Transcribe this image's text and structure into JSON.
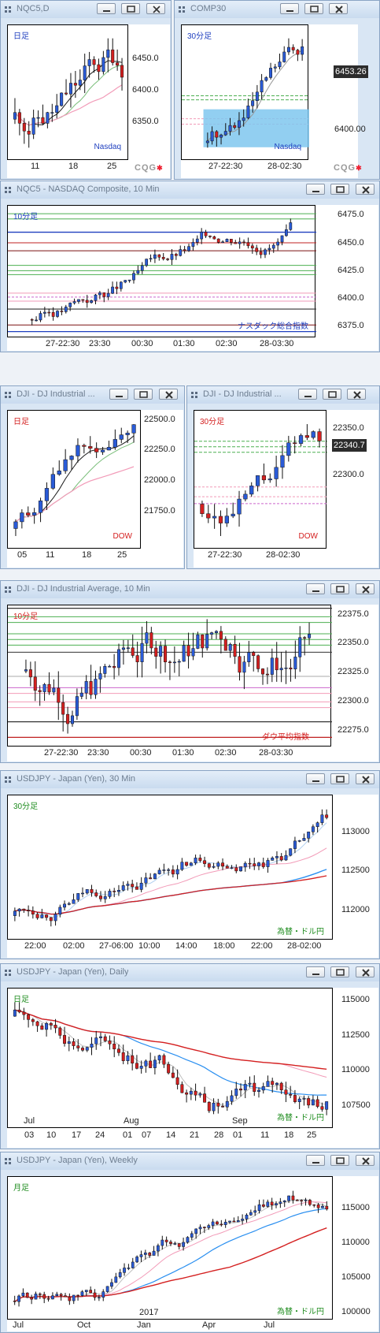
{
  "windows": [
    {
      "id": "w1",
      "title": "NQC5,D",
      "interval": "日足",
      "source": "Nasdaq",
      "source_color": "#1f3fbf",
      "y_ticks": [
        "6450.0",
        "6400.0",
        "6350.0"
      ],
      "x_ticks": [
        "11",
        "18",
        "25"
      ],
      "price": "",
      "watermark": "CQG"
    },
    {
      "id": "w2",
      "title": "COMP30",
      "interval": "30分足",
      "source": "Nasdaq",
      "source_color": "#1f3fbf",
      "y_ticks": [
        "6453.26",
        "6400.00"
      ],
      "x_ticks": [
        "27-22:30",
        "28-02:30"
      ],
      "price": "6453.26",
      "watermark": "CQG"
    },
    {
      "id": "w3",
      "title": "NQC5 - NASDAQ Composite, 10 Min",
      "interval": "10分足",
      "source": "ナスダック総合指数",
      "source_color": "#1f3fbf",
      "y_ticks": [
        "6475.0",
        "6450.0",
        "6425.0",
        "6400.0",
        "6375.0"
      ],
      "x_ticks": [
        "27-22:30",
        "23:30",
        "00:30",
        "01:30",
        "02:30",
        "28-03:30"
      ],
      "price": "",
      "watermark": ""
    },
    {
      "id": "w4",
      "title": "DJI - DJ Industrial ...",
      "interval": "日足",
      "source": "DOW",
      "source_color": "#d42020",
      "y_ticks": [
        "22500.0",
        "22250.0",
        "22000.0",
        "21750.0"
      ],
      "x_ticks": [
        "05",
        "11",
        "18",
        "25"
      ],
      "price": "",
      "watermark": ""
    },
    {
      "id": "w5",
      "title": "DJI - DJ Industrial ...",
      "interval": "30分足",
      "source": "DOW",
      "source_color": "#d42020",
      "y_ticks": [
        "22350.0",
        "22340.7",
        "22300.0"
      ],
      "x_ticks": [
        "27-22:30",
        "28-02:30"
      ],
      "price": "22340.7",
      "watermark": ""
    },
    {
      "id": "w6",
      "title": "DJI - DJ Industrial Average, 10 Min",
      "interval": "10分足",
      "source": "ダウ平均指数",
      "source_color": "#d42020",
      "y_ticks": [
        "22375.0",
        "22350.0",
        "22325.0",
        "22300.0",
        "22275.0"
      ],
      "x_ticks": [
        "27-22:30",
        "23:30",
        "00:30",
        "01:30",
        "02:30",
        "28-03:30"
      ],
      "price": "",
      "watermark": ""
    },
    {
      "id": "w7",
      "title": "USDJPY - Japan (Yen), 30 Min",
      "interval": "30分足",
      "source": "為替・ドル円",
      "source_color": "#1e8c1e",
      "y_ticks": [
        "113000",
        "112500",
        "112000"
      ],
      "x_ticks": [
        "22:00",
        "02:00",
        "27-06:00",
        "10:00",
        "14:00",
        "18:00",
        "22:00",
        "28-02:00"
      ],
      "price": "",
      "watermark": ""
    },
    {
      "id": "w8",
      "title": "USDJPY - Japan (Yen), Daily",
      "interval": "日足",
      "source": "為替・ドル円",
      "source_color": "#1e8c1e",
      "y_ticks": [
        "115000",
        "112500",
        "110000",
        "107500"
      ],
      "x_ticks": [
        "03",
        "10",
        "17",
        "24",
        "01",
        "07",
        "14",
        "21",
        "28",
        "01",
        "11",
        "18",
        "25"
      ],
      "month_labels": [
        "Jul",
        "Aug",
        "Sep"
      ],
      "price": "",
      "watermark": ""
    },
    {
      "id": "w9",
      "title": "USDJPY - Japan (Yen), Weekly",
      "interval": "月足",
      "source": "為替・ドル円",
      "source_color": "#1e8c1e",
      "y_ticks": [
        "115000",
        "110000",
        "105000",
        "100000"
      ],
      "x_ticks": [
        "Jul",
        "Oct",
        "Jan",
        "Apr",
        "Jul"
      ],
      "year_label": "2017",
      "price": "",
      "watermark": ""
    }
  ]
}
